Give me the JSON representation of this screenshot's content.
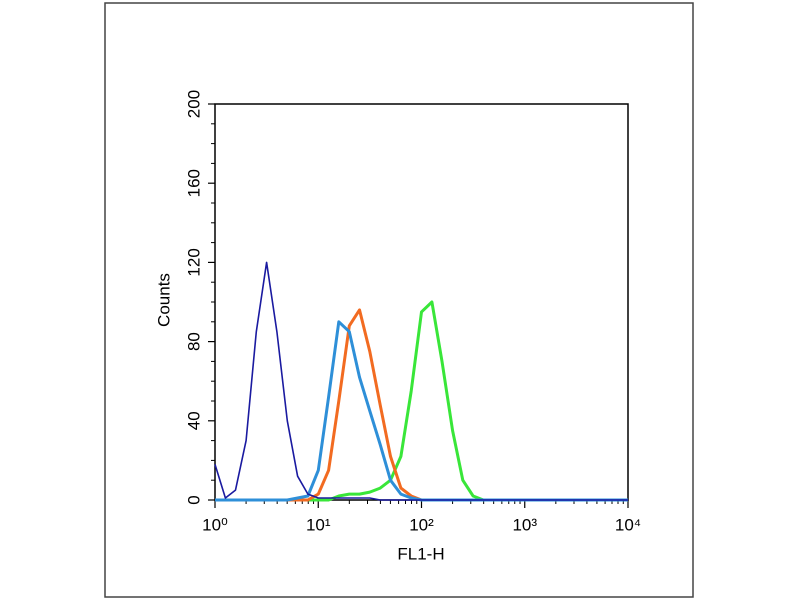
{
  "chart_data": {
    "type": "line",
    "x_label": "FL1-H",
    "y_label": "Counts",
    "x_log": true,
    "x": [
      1,
      1.26,
      1.58,
      2,
      2.51,
      3.16,
      3.98,
      5.01,
      6.31,
      7.94,
      10,
      12.6,
      15.8,
      20,
      25.1,
      31.6,
      39.8,
      50.1,
      63.1,
      79.4,
      100,
      126,
      158,
      200,
      251,
      316,
      398,
      501,
      631,
      794,
      1000,
      10000
    ],
    "series": [
      {
        "color": "#39e639",
        "values": [
          0,
          0,
          0,
          0,
          0,
          0,
          0,
          0,
          0,
          0,
          0,
          0,
          2,
          3,
          3,
          4,
          6,
          10,
          22,
          55,
          95,
          100,
          70,
          35,
          10,
          2,
          0,
          0,
          0,
          0,
          0,
          0
        ]
      },
      {
        "color": "#f26b21",
        "values": [
          0,
          0,
          0,
          0,
          0,
          0,
          0,
          0,
          0,
          0,
          3,
          15,
          50,
          88,
          96,
          75,
          48,
          22,
          6,
          2,
          0,
          0,
          0,
          0,
          0,
          0,
          0,
          0,
          0,
          0,
          0,
          0
        ]
      },
      {
        "color": "#2e8fd8",
        "values": [
          0,
          0,
          0,
          0,
          0,
          0,
          0,
          0,
          1,
          2,
          15,
          52,
          90,
          85,
          62,
          45,
          28,
          10,
          3,
          1,
          0,
          0,
          0,
          0,
          0,
          0,
          0,
          0,
          0,
          0,
          0,
          0
        ]
      },
      {
        "color": "#1a1aa0",
        "values": [
          18,
          1,
          5,
          30,
          85,
          120,
          85,
          40,
          12,
          3,
          1,
          1,
          1,
          1,
          1,
          1,
          0,
          0,
          0,
          0,
          0,
          0,
          0,
          0,
          0,
          0,
          0,
          0,
          0,
          0,
          0,
          0
        ]
      }
    ],
    "xlim": [
      1,
      10000
    ],
    "xticks": [
      {
        "value": 1,
        "label": "10⁰"
      },
      {
        "value": 10,
        "label": "10¹"
      },
      {
        "value": 100,
        "label": "10²"
      },
      {
        "value": 1000,
        "label": "10³"
      },
      {
        "value": 10000,
        "label": "10⁴"
      }
    ],
    "ylim": [
      0,
      200
    ],
    "yticks": [
      0,
      40,
      80,
      120,
      160,
      200
    ]
  }
}
